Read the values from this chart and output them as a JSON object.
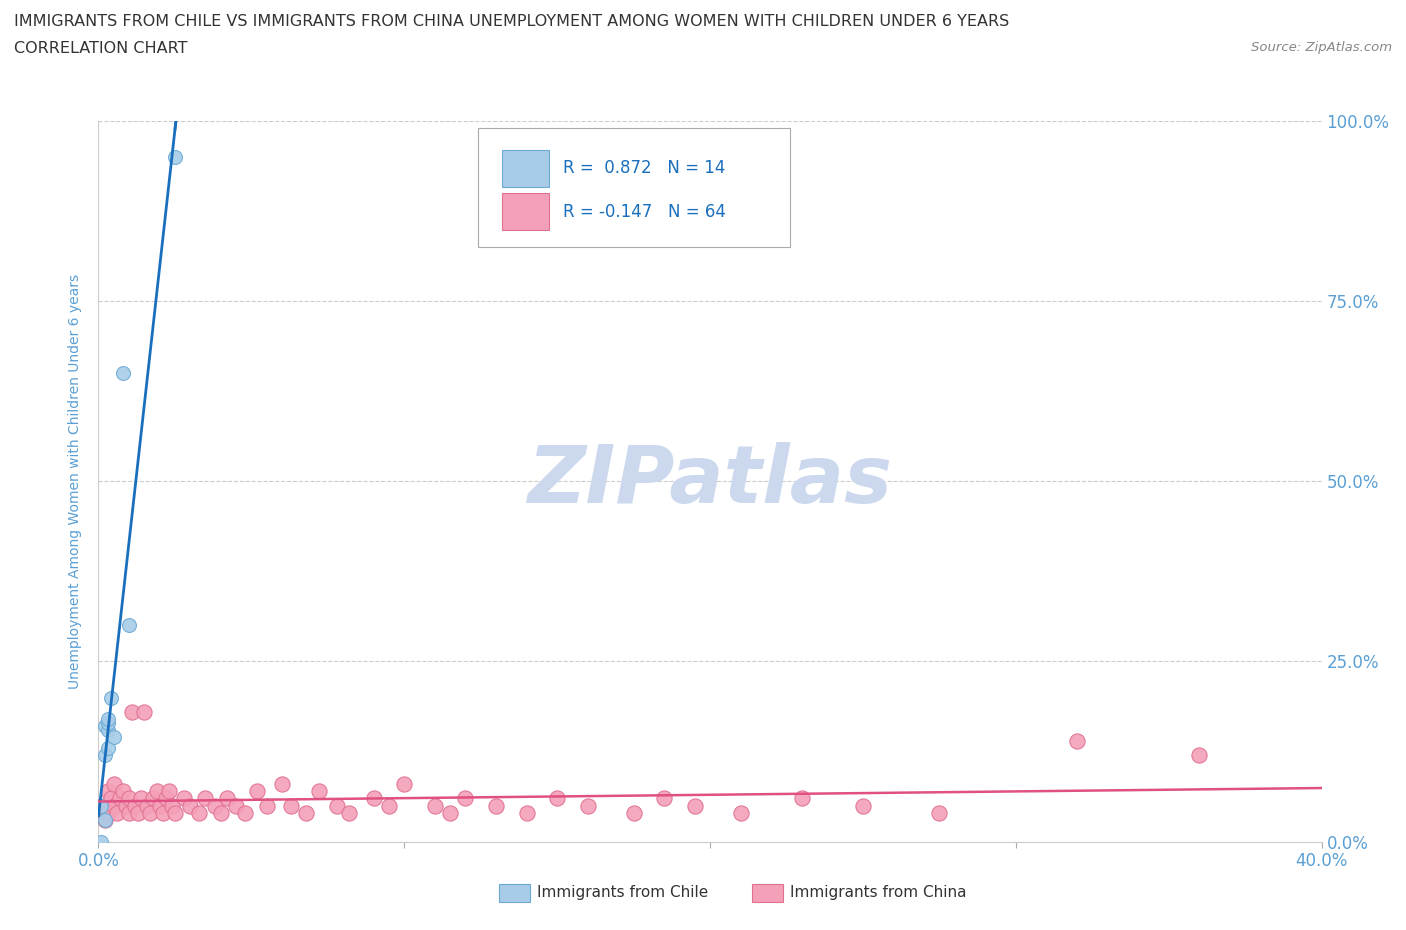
{
  "title_line1": "IMMIGRANTS FROM CHILE VS IMMIGRANTS FROM CHINA UNEMPLOYMENT AMONG WOMEN WITH CHILDREN UNDER 6 YEARS",
  "title_line2": "CORRELATION CHART",
  "source": "Source: ZipAtlas.com",
  "ylabel": "Unemployment Among Women with Children Under 6 years",
  "xlim": [
    0.0,
    0.4
  ],
  "ylim": [
    0.0,
    1.0
  ],
  "xtick_labels_bottom": [
    "0.0%",
    "",
    "",
    "",
    "40.0%"
  ],
  "xtick_vals": [
    0.0,
    0.1,
    0.2,
    0.3,
    0.4
  ],
  "ytick_labels_right": [
    "0.0%",
    "25.0%",
    "50.0%",
    "75.0%",
    "100.0%"
  ],
  "ytick_vals": [
    0.0,
    0.25,
    0.5,
    0.75,
    1.0
  ],
  "chile_color": "#a8cce8",
  "chile_edge_color": "#6aaad4",
  "china_color": "#f4a0b8",
  "china_edge_color": "#e07090",
  "trendline_chile_color": "#1a6fbd",
  "trendline_china_color": "#e05080",
  "R_chile": 0.872,
  "N_chile": 14,
  "R_china": -0.147,
  "N_china": 64,
  "watermark": "ZIPatlas",
  "watermark_color": "#ccd8ee",
  "grid_color": "#cccccc",
  "axis_label_color": "#5a9fd4",
  "title_color": "#333333",
  "legend_label_chile": "Immigrants from Chile",
  "legend_label_china": "Immigrants from China",
  "chile_x": [
    0.001,
    0.001,
    0.002,
    0.002,
    0.002,
    0.003,
    0.003,
    0.003,
    0.003,
    0.004,
    0.005,
    0.008,
    0.01,
    0.025
  ],
  "chile_y": [
    0.0,
    0.05,
    0.03,
    0.12,
    0.16,
    0.13,
    0.155,
    0.165,
    0.17,
    0.2,
    0.145,
    0.65,
    0.3,
    0.95
  ],
  "china_x": [
    0.001,
    0.002,
    0.003,
    0.003,
    0.004,
    0.005,
    0.005,
    0.006,
    0.007,
    0.008,
    0.009,
    0.01,
    0.01,
    0.011,
    0.012,
    0.013,
    0.014,
    0.015,
    0.016,
    0.017,
    0.018,
    0.019,
    0.02,
    0.021,
    0.022,
    0.023,
    0.024,
    0.025,
    0.028,
    0.03,
    0.033,
    0.035,
    0.038,
    0.04,
    0.042,
    0.045,
    0.048,
    0.052,
    0.055,
    0.06,
    0.063,
    0.068,
    0.072,
    0.078,
    0.082,
    0.09,
    0.095,
    0.1,
    0.11,
    0.115,
    0.12,
    0.13,
    0.14,
    0.15,
    0.16,
    0.175,
    0.185,
    0.195,
    0.21,
    0.23,
    0.25,
    0.275,
    0.32,
    0.36
  ],
  "china_y": [
    0.05,
    0.03,
    0.07,
    0.04,
    0.06,
    0.08,
    0.05,
    0.04,
    0.06,
    0.07,
    0.05,
    0.04,
    0.06,
    0.18,
    0.05,
    0.04,
    0.06,
    0.18,
    0.05,
    0.04,
    0.06,
    0.07,
    0.05,
    0.04,
    0.06,
    0.07,
    0.05,
    0.04,
    0.06,
    0.05,
    0.04,
    0.06,
    0.05,
    0.04,
    0.06,
    0.05,
    0.04,
    0.07,
    0.05,
    0.08,
    0.05,
    0.04,
    0.07,
    0.05,
    0.04,
    0.06,
    0.05,
    0.08,
    0.05,
    0.04,
    0.06,
    0.05,
    0.04,
    0.06,
    0.05,
    0.04,
    0.06,
    0.05,
    0.04,
    0.06,
    0.05,
    0.04,
    0.14,
    0.12
  ]
}
